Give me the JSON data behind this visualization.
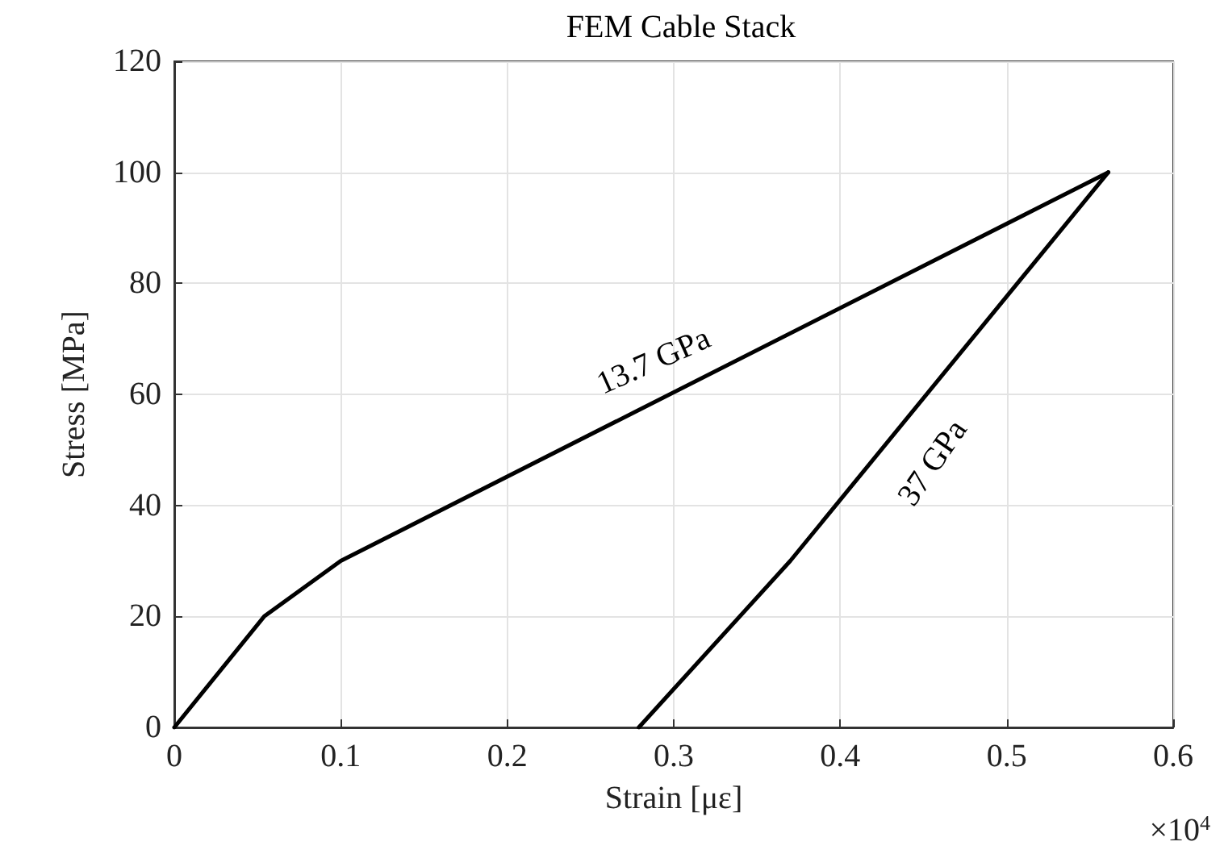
{
  "chart_data": {
    "type": "line",
    "title": "FEM Cable Stack",
    "xlabel": "Strain [με]",
    "ylabel": "Stress [MPa]",
    "series": [
      {
        "color": "#000000",
        "x": [
          0,
          0.054,
          0.1,
          0.561
        ],
        "values": [
          0,
          20,
          30,
          100
        ]
      },
      {
        "color": "#000000",
        "x": [
          0.279,
          0.37,
          0.561
        ],
        "values": [
          0,
          30,
          100
        ]
      }
    ],
    "xlim": [
      0,
      0.6
    ],
    "xticks": [
      0,
      0.1,
      0.2,
      0.3,
      0.4,
      0.5,
      0.6
    ],
    "ylim": [
      0,
      120
    ],
    "yticks": [
      0,
      20,
      40,
      60,
      80,
      100,
      120
    ],
    "grid": true,
    "marker": "none",
    "line_style": "solid",
    "annotations": [
      "13.7 GPa",
      "37 GPa",
      "×10$^{4}$"
    ]
  }
}
